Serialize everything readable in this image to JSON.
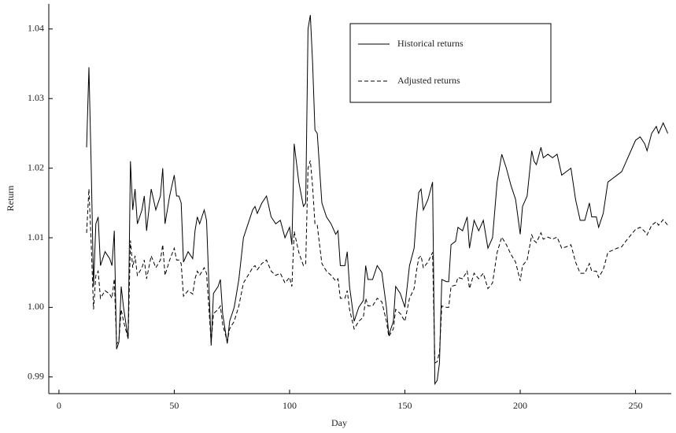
{
  "chart_data": {
    "type": "line",
    "x_label": "Day",
    "y_label": "Return",
    "xlim": [
      -4.4,
      265.5
    ],
    "xticks": [
      0,
      50,
      100,
      150,
      200,
      250
    ],
    "ylim": [
      0.9876,
      1.0436
    ],
    "yticks": [
      0.99,
      {
        "value": 1.0,
        "label": "1.00"
      },
      1.01,
      1.02,
      1.03,
      1.04
    ],
    "grid": false,
    "legend": "upper right",
    "x": [
      12,
      13,
      14,
      15,
      16,
      17,
      18,
      20,
      22,
      23,
      24,
      25,
      26,
      27,
      28,
      30,
      31,
      32,
      33,
      34,
      36,
      37,
      38,
      40,
      42,
      44,
      45,
      46,
      48,
      50,
      51,
      52,
      53,
      54,
      56,
      58,
      59,
      60,
      61,
      63,
      64,
      66,
      67,
      69,
      70,
      71,
      73,
      74,
      76,
      78,
      80,
      82,
      84,
      85,
      86,
      88,
      90,
      92,
      94,
      96,
      98,
      100,
      101,
      102,
      104,
      106,
      107,
      108,
      109,
      110,
      111,
      112,
      113,
      114,
      116,
      118,
      120,
      121,
      122,
      124,
      125,
      126,
      128,
      130,
      132,
      133,
      134,
      136,
      138,
      140,
      142,
      143,
      145,
      146,
      148,
      150,
      152,
      154,
      155,
      156,
      157,
      158,
      160,
      162,
      163,
      164,
      165,
      166,
      168,
      169,
      170,
      172,
      173,
      175,
      177,
      178,
      180,
      182,
      184,
      186,
      188,
      190,
      192,
      194,
      196,
      198,
      200,
      201,
      203,
      205,
      206,
      207,
      209,
      210,
      212,
      214,
      216,
      218,
      220,
      222,
      224,
      226,
      228,
      230,
      231,
      233,
      234,
      236,
      238,
      240,
      242,
      244,
      246,
      248,
      250,
      252,
      254,
      255,
      257,
      259,
      260,
      262,
      264
    ],
    "series": [
      {
        "name": "Historical returns",
        "color": "#000000",
        "line_style": "solid",
        "values": [
          1.023,
          1.0345,
          1.02,
          1.003,
          1.012,
          1.013,
          1.006,
          1.008,
          1.007,
          1.006,
          1.011,
          0.994,
          0.995,
          1.003,
          1.0,
          0.9955,
          1.021,
          1.014,
          1.017,
          1.012,
          1.014,
          1.016,
          1.011,
          1.017,
          1.014,
          1.016,
          1.02,
          1.012,
          1.016,
          1.019,
          1.016,
          1.016,
          1.015,
          1.0065,
          1.008,
          1.007,
          1.011,
          1.013,
          1.012,
          1.014,
          1.0125,
          0.9945,
          1.002,
          1.003,
          1.004,
          0.999,
          0.9948,
          0.998,
          1.0,
          1.004,
          1.01,
          1.012,
          1.014,
          1.0145,
          1.0135,
          1.015,
          1.016,
          1.013,
          1.012,
          1.0125,
          1.01,
          1.0115,
          1.009,
          1.0235,
          1.018,
          1.0145,
          1.015,
          1.04,
          1.042,
          1.035,
          1.0255,
          1.025,
          1.02,
          1.015,
          1.013,
          1.012,
          1.0105,
          1.011,
          1.006,
          1.006,
          1.008,
          1.003,
          0.998,
          1.0,
          1.001,
          1.006,
          1.004,
          1.004,
          1.006,
          1.005,
          1.0,
          0.996,
          0.998,
          1.003,
          1.002,
          1.0,
          1.006,
          1.0085,
          1.013,
          1.0165,
          1.017,
          1.014,
          1.0155,
          1.018,
          0.989,
          0.9895,
          0.992,
          1.004,
          1.0037,
          1.0037,
          1.009,
          1.0095,
          1.0115,
          1.011,
          1.013,
          1.0085,
          1.0125,
          1.011,
          1.0125,
          1.0085,
          1.01,
          1.018,
          1.022,
          1.02,
          1.0175,
          1.0155,
          1.0105,
          1.0145,
          1.016,
          1.0225,
          1.021,
          1.0205,
          1.023,
          1.0215,
          1.022,
          1.0215,
          1.022,
          1.019,
          1.0195,
          1.02,
          1.0155,
          1.0125,
          1.0125,
          1.015,
          1.013,
          1.013,
          1.0115,
          1.0135,
          1.018,
          1.0185,
          1.019,
          1.0195,
          1.021,
          1.0225,
          1.024,
          1.0245,
          1.0235,
          1.0225,
          1.025,
          1.026,
          1.025,
          1.0265,
          1.025
        ]
      },
      {
        "name": "Adjusted returns",
        "color": "#000000",
        "line_style": "dashed",
        "values": [
          1.0107,
          1.017,
          1.009,
          0.9997,
          1.0046,
          1.0052,
          1.0013,
          1.0024,
          1.0019,
          1.0013,
          1.0041,
          0.9947,
          0.9953,
          0.9997,
          0.998,
          0.9955,
          1.0096,
          1.0057,
          1.0074,
          1.0046,
          1.0057,
          1.0068,
          1.0041,
          1.0074,
          1.0057,
          1.0068,
          1.009,
          1.0046,
          1.0068,
          1.0085,
          1.0068,
          1.0068,
          1.0063,
          1.0016,
          1.0024,
          1.0019,
          1.0041,
          1.0052,
          1.0046,
          1.0057,
          1.0049,
          0.995,
          0.9991,
          0.9997,
          1.0002,
          0.9975,
          0.9951,
          0.9969,
          0.998,
          1.0002,
          1.0035,
          1.0046,
          1.0057,
          1.006,
          1.0054,
          1.0063,
          1.0068,
          1.0052,
          1.0046,
          1.0049,
          1.0035,
          1.0043,
          1.003,
          1.0109,
          1.0079,
          1.006,
          1.0063,
          1.02,
          1.0211,
          1.0173,
          1.012,
          1.0118,
          1.009,
          1.0063,
          1.0052,
          1.0046,
          1.0038,
          1.0041,
          1.0013,
          1.0013,
          1.0024,
          0.9997,
          0.9969,
          0.998,
          0.9986,
          1.0013,
          1.0002,
          1.0002,
          1.0013,
          1.0008,
          0.998,
          0.9958,
          0.9969,
          0.9997,
          0.9991,
          0.998,
          1.0013,
          1.0027,
          1.0052,
          1.0071,
          1.0074,
          1.0057,
          1.0065,
          1.0079,
          0.992,
          0.9922,
          0.9936,
          1.0002,
          1.0,
          1.0,
          1.003,
          1.0032,
          1.0043,
          1.0041,
          1.0052,
          1.0027,
          1.0049,
          1.0041,
          1.0049,
          1.0027,
          1.0035,
          1.0079,
          1.0101,
          1.009,
          1.0076,
          1.0065,
          1.0038,
          1.006,
          1.0068,
          1.0104,
          1.0096,
          1.0093,
          1.0107,
          1.0098,
          1.0101,
          1.0098,
          1.0101,
          1.0085,
          1.0087,
          1.009,
          1.0065,
          1.0049,
          1.0049,
          1.0063,
          1.0052,
          1.0052,
          1.0043,
          1.0054,
          1.0079,
          1.0082,
          1.0085,
          1.0087,
          1.0096,
          1.0104,
          1.0112,
          1.0115,
          1.0109,
          1.0104,
          1.0118,
          1.0123,
          1.0118,
          1.0126,
          1.0118
        ]
      }
    ]
  }
}
